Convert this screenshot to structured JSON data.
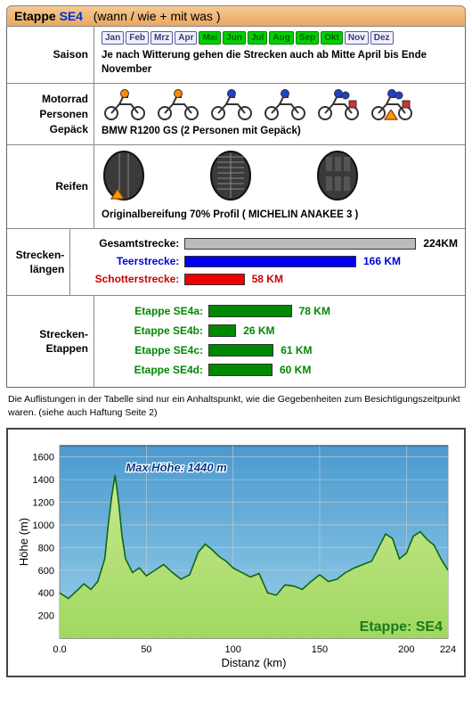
{
  "header": {
    "title": "Etappe",
    "code": "SE4",
    "subtitle": "(wann / wie + mit was )"
  },
  "labels": {
    "saison": "Saison",
    "motorrad": [
      "Motorrad",
      "Personen",
      "Gepäck"
    ],
    "reifen": "Reifen",
    "strecken": "Strecken-\nlängen",
    "etappen": "Strecken-\nEtappen"
  },
  "months": {
    "items": [
      {
        "abbr": "Jan",
        "state": "off"
      },
      {
        "abbr": "Feb",
        "state": "off"
      },
      {
        "abbr": "Mrz",
        "state": "off"
      },
      {
        "abbr": "Apr",
        "state": "off"
      },
      {
        "abbr": "Mai",
        "state": "on"
      },
      {
        "abbr": "Jun",
        "state": "on"
      },
      {
        "abbr": "Jul",
        "state": "on"
      },
      {
        "abbr": "Aug",
        "state": "on"
      },
      {
        "abbr": "Sep",
        "state": "on"
      },
      {
        "abbr": "Okt",
        "state": "on"
      },
      {
        "abbr": "Nov",
        "state": "off"
      },
      {
        "abbr": "Dez",
        "state": "off"
      }
    ],
    "note": "Je nach Witterung gehen die Strecken auch ab Mitte April bis Ende November"
  },
  "bike": {
    "caption": "BMW R1200 GS  (2 Personen mit Gepäck)",
    "colors": {
      "enduro": "#ff8800",
      "touring": "#2040d0"
    },
    "selected_index": 5
  },
  "tyre": {
    "caption": "Originalbereifung  70% Profil ( MICHELIN ANAKEE 3 )",
    "selected_index": 0
  },
  "strecken": {
    "max_km": 224,
    "rows": [
      {
        "label": "Gesamtstrecke:",
        "km": 224,
        "txt": "224KM",
        "color": "#bbbbbb",
        "label_color": "#000000",
        "val_color": "#000000"
      },
      {
        "label": "Teerstrecke:",
        "km": 166,
        "txt": "166 KM",
        "color": "#0000ee",
        "label_color": "#0000dd",
        "val_color": "#0000dd"
      },
      {
        "label": "Schotterstrecke:",
        "km": 58,
        "txt": "58 KM",
        "color": "#ee0000",
        "label_color": "#cc0000",
        "val_color": "#cc0000"
      }
    ]
  },
  "etappen": {
    "max_km": 100,
    "color": "#008800",
    "rows": [
      {
        "label": "Etappe SE4a:",
        "km": 78,
        "txt": "78 KM"
      },
      {
        "label": "Etappe SE4b:",
        "km": 26,
        "txt": "26 KM"
      },
      {
        "label": "Etappe SE4c:",
        "km": 61,
        "txt": "61 KM"
      },
      {
        "label": "Etappe SE4d:",
        "km": 60,
        "txt": "60 KM"
      }
    ]
  },
  "note": "Die Auflistungen in der Tabelle sind nur ein Anhaltspunkt, wie die Gegebenheiten zum Besichtigungszeitpunkt waren. (siehe auch Haftung Seite 2)",
  "elevation": {
    "type": "area",
    "title": "Etappe: SE4",
    "max_label": "Max Höhe: 1440 m",
    "xlabel": "Distanz    (km)",
    "ylabel": "Höhe   (m)",
    "xlim": [
      0,
      224
    ],
    "xticks": [
      0.0,
      50,
      100,
      150,
      200,
      224
    ],
    "ylim": [
      0,
      1700
    ],
    "yticks": [
      200,
      400,
      600,
      800,
      1000,
      1200,
      1400,
      1600
    ],
    "bg_top": "#4a9ad0",
    "bg_bot": "#98d0e8",
    "fill_top": "#c8e890",
    "fill_bot": "#a0d860",
    "line_color": "#116611",
    "grid_color": "#cccccc",
    "label_fontsize": 13,
    "tick_fontsize": 11,
    "points": [
      [
        0,
        400
      ],
      [
        5,
        350
      ],
      [
        10,
        420
      ],
      [
        14,
        480
      ],
      [
        18,
        430
      ],
      [
        22,
        500
      ],
      [
        26,
        700
      ],
      [
        28,
        1000
      ],
      [
        30,
        1250
      ],
      [
        32,
        1440
      ],
      [
        34,
        1200
      ],
      [
        36,
        900
      ],
      [
        38,
        700
      ],
      [
        42,
        580
      ],
      [
        46,
        620
      ],
      [
        50,
        550
      ],
      [
        55,
        600
      ],
      [
        60,
        650
      ],
      [
        65,
        580
      ],
      [
        70,
        520
      ],
      [
        75,
        560
      ],
      [
        80,
        760
      ],
      [
        84,
        830
      ],
      [
        88,
        780
      ],
      [
        92,
        720
      ],
      [
        96,
        680
      ],
      [
        100,
        620
      ],
      [
        105,
        580
      ],
      [
        110,
        540
      ],
      [
        115,
        570
      ],
      [
        120,
        400
      ],
      [
        125,
        380
      ],
      [
        130,
        470
      ],
      [
        135,
        460
      ],
      [
        140,
        430
      ],
      [
        145,
        500
      ],
      [
        150,
        560
      ],
      [
        155,
        500
      ],
      [
        160,
        520
      ],
      [
        165,
        580
      ],
      [
        170,
        620
      ],
      [
        175,
        650
      ],
      [
        180,
        680
      ],
      [
        184,
        800
      ],
      [
        188,
        920
      ],
      [
        192,
        880
      ],
      [
        196,
        700
      ],
      [
        200,
        750
      ],
      [
        204,
        900
      ],
      [
        208,
        940
      ],
      [
        212,
        870
      ],
      [
        216,
        820
      ],
      [
        220,
        700
      ],
      [
        224,
        600
      ]
    ]
  },
  "marker_color": "#ff9900"
}
